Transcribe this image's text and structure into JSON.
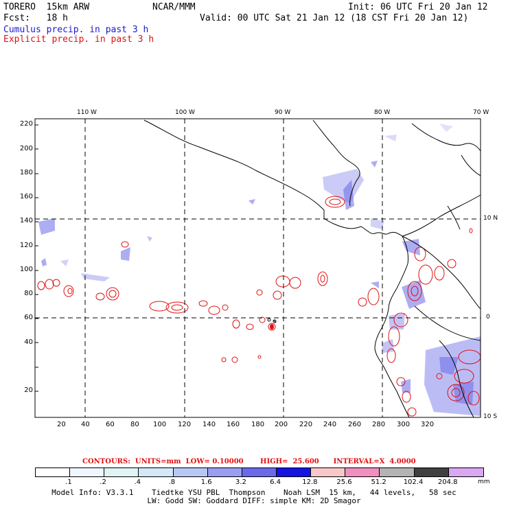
{
  "header": {
    "model": "TORERO  15km ARW",
    "org": "NCAR/MMM",
    "init": "Init: 06 UTC Fri 20 Jan 12",
    "fcst": "Fcst:   18 h",
    "valid": "Valid: 00 UTC Sat 21 Jan 12 (18 CST Fri 20 Jan 12)",
    "legend_cumulus": "Cumulus precip. in past 3 h",
    "legend_explicit": "Explicit precip. in past 3 h"
  },
  "map": {
    "lon_labels": [
      "110 W",
      "100 W",
      "90 W",
      "80 W",
      "70 W"
    ],
    "lat_labels": [
      "10 N",
      "0",
      "10 S"
    ],
    "y_ticks": [
      "220",
      "200",
      "180",
      "160",
      "140",
      "120",
      "100",
      "80",
      "60",
      "40",
      "20"
    ],
    "x_ticks": [
      "20",
      "40",
      "60",
      "80",
      "100",
      "120",
      "140",
      "160",
      "180",
      "200",
      "220",
      "240",
      "260",
      "280",
      "300",
      "320"
    ],
    "colors": {
      "coast": "#000000",
      "cumulus": "#4040e0",
      "explicit": "#e01010"
    }
  },
  "contours": {
    "line": "CONTOURS:  UNITS=mm  LOW= 0.10000       HIGH=  25.600      INTERVAL=X  4.0000"
  },
  "colorbar": {
    "labels": [
      ".1",
      ".2",
      ".4",
      ".8",
      "1.6",
      "3.2",
      "6.4",
      "12.8",
      "25.6",
      "51.2",
      "102.4",
      "204.8"
    ],
    "unit": "mm",
    "colors": [
      "#ffffff",
      "#f0f6ff",
      "#e0f4f4",
      "#d4e8f8",
      "#b8c8f4",
      "#9a9ef0",
      "#6a6ae8",
      "#1414e0",
      "#f8c8c8",
      "#f090c0",
      "#b4b4b4",
      "#404040",
      "#d8a8f0"
    ]
  },
  "model_info": {
    "line1": "Model Info: V3.3.1    Tiedtke YSU PBL  Thompson    Noah LSM  15 km,   44 levels,   58 sec",
    "line2": "LW: Godd SW: Goddard DIFF: simple KM: 2D Smagor"
  }
}
